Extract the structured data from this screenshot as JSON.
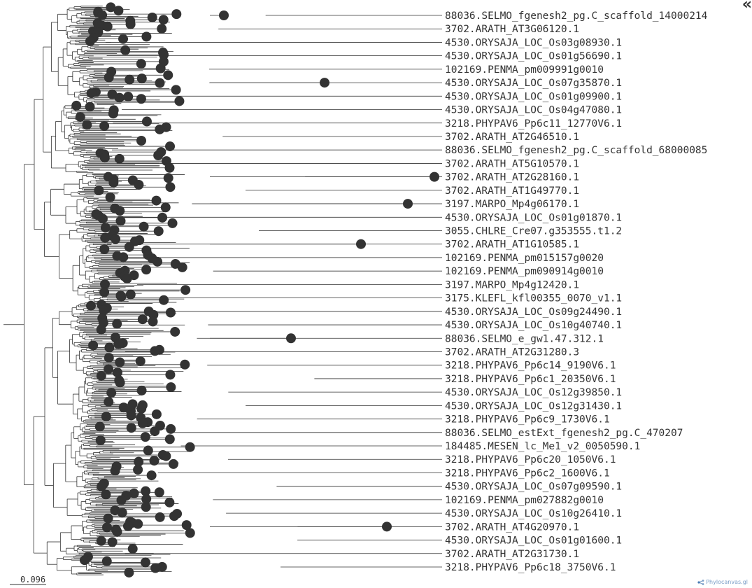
{
  "scale_bar": {
    "label": "0.096"
  },
  "controls": {
    "collapse_glyph": "«"
  },
  "credit": {
    "text": "Phylocanvas.gl"
  },
  "colors": {
    "branch": "#333333",
    "node": "#333333",
    "label": "#333333",
    "credit": "#7a9ec7"
  },
  "leaves": [
    "88036.SELMO_fgenesh2_pg.C_scaffold_14000214",
    "3702.ARATH_AT3G06120.1",
    "4530.ORYSAJA_LOC_Os03g08930.1",
    "4530.ORYSAJA_LOC_Os01g56690.1",
    "102169.PENMA_pm009991g0010",
    "4530.ORYSAJA_LOC_Os07g35870.1",
    "4530.ORYSAJA_LOC_Os01g09900.1",
    "4530.ORYSAJA_LOC_Os04g47080.1",
    "3218.PHYPAV6_Pp6c11_12770V6.1",
    "3702.ARATH_AT2G46510.1",
    "88036.SELMO_fgenesh2_pg.C_scaffold_68000085",
    "3702.ARATH_AT5G10570.1",
    "3702.ARATH_AT2G28160.1",
    "3702.ARATH_AT1G49770.1",
    "3197.MARPO_Mp4g06170.1",
    "4530.ORYSAJA_LOC_Os01g01870.1",
    "3055.CHLRE_Cre07.g353555.t1.2",
    "3702.ARATH_AT1G10585.1",
    "102169.PENMA_pm015157g0020",
    "102169.PENMA_pm090914g0010",
    "3197.MARPO_Mp4g12420.1",
    "3175.KLEFL_kfl00355_0070_v1.1",
    "4530.ORYSAJA_LOC_Os09g24490.1",
    "4530.ORYSAJA_LOC_Os10g40740.1",
    "88036.SELMO_e_gw1.47.312.1",
    "3702.ARATH_AT2G31280.3",
    "3218.PHYPAV6_Pp6c14_9190V6.1",
    "3218.PHYPAV6_Pp6c1_20350V6.1",
    "4530.ORYSAJA_LOC_Os12g39850.1",
    "4530.ORYSAJA_LOC_Os12g31430.1",
    "3218.PHYPAV6_Pp6c9_1730V6.1",
    "88036.SELMO_estExt_fgenesh2_pg.C_470207",
    "184485.MESEN_lc_Me1_v2_0050590.1",
    "3218.PHYPAV6_Pp6c20_1050V6.1",
    "3218.PHYPAV6_Pp6c2_1600V6.1",
    "4530.ORYSAJA_LOC_Os07g09590.1",
    "102169.PENMA_pm027882g0010",
    "4530.ORYSAJA_LOC_Os10g26410.1",
    "3702.ARATH_AT4G20970.1",
    "4530.ORYSAJA_LOC_Os01g01600.1",
    "3702.ARATH_AT2G31730.1",
    "3218.PHYPAV6_Pp6c18_3750V6.1"
  ]
}
